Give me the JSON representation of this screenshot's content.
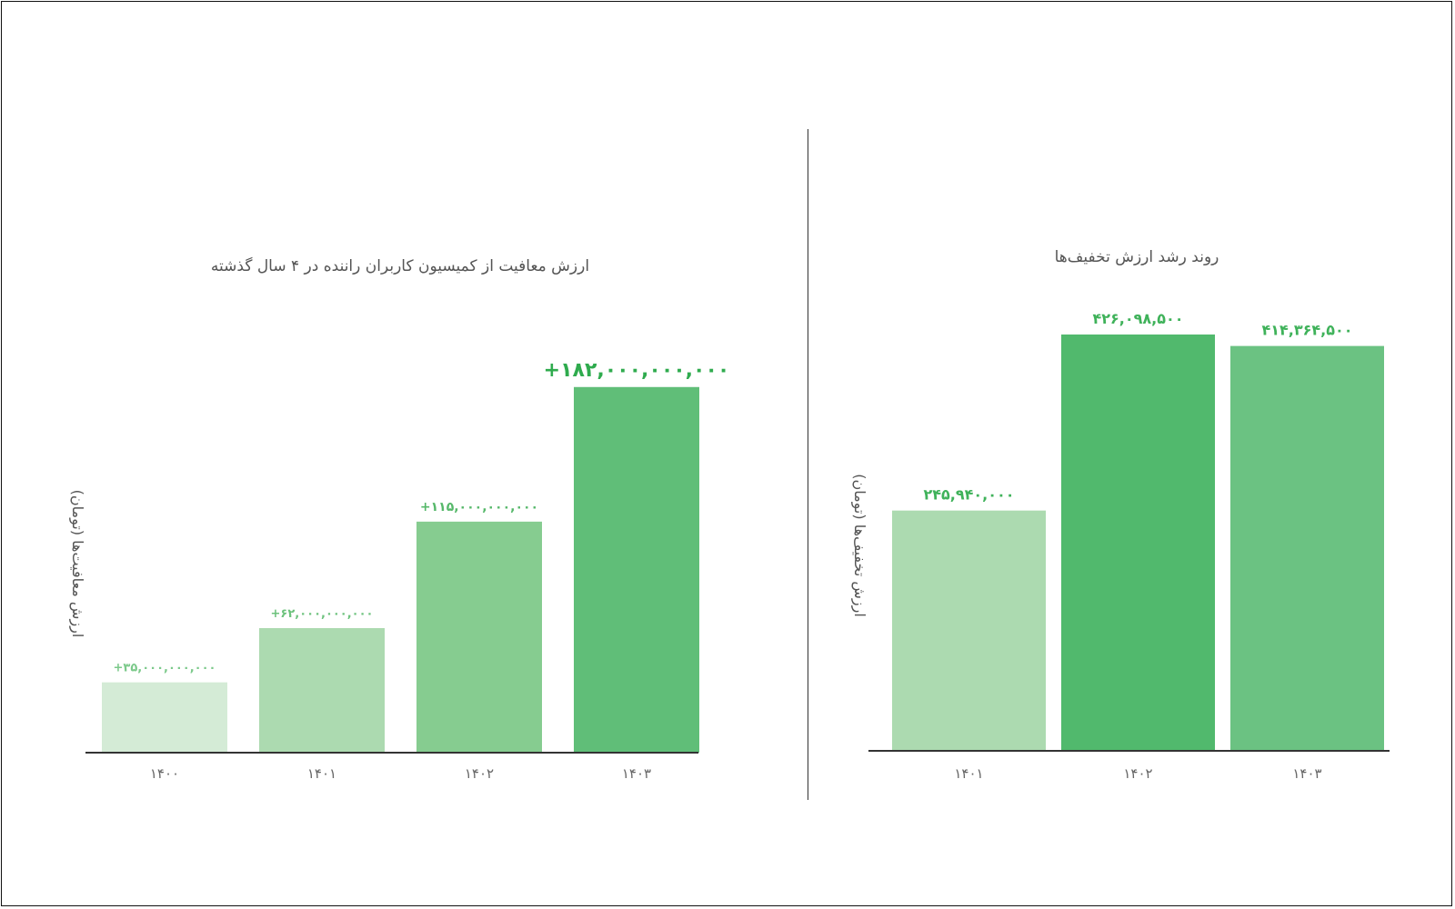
{
  "charts": [
    {
      "title": "ارزش معافیت از کمیسیون کاربران راننده در ۴ سال گذشته",
      "ylabel": "ارزش معافیت‌ها (تومان)",
      "bar_colors": [
        "#d4ebd6",
        "#acdab0",
        "#86cc90",
        "#60be78"
      ],
      "label_colors": [
        "#7bc98a",
        "#6cc27c",
        "#56b86a",
        "#2fab4e"
      ]
    },
    {
      "title": "روند رشد ارزش تخفیف‌ها",
      "ylabel": "ارزش تخفیف‌ها (تومان)",
      "bar_colors": [
        "#acdab0",
        "#51b96d",
        "#6bc282"
      ],
      "label_colors": [
        "#3fb25a",
        "#3fb25a",
        "#3fb25a"
      ]
    }
  ],
  "chart_data": [
    {
      "type": "bar",
      "title": "ارزش معافیت از کمیسیون کاربران راننده در ۴ سال گذشته",
      "xlabel": "",
      "ylabel": "ارزش معافیت‌ها (تومان)",
      "categories": [
        "۱۴۰۰",
        "۱۴۰۱",
        "۱۴۰۲",
        "۱۴۰۳"
      ],
      "values": [
        35000000000,
        62000000000,
        115000000000,
        182000000000
      ],
      "data_labels": [
        "+۳۵,۰۰۰,۰۰۰,۰۰۰",
        "+۶۲,۰۰۰,۰۰۰,۰۰۰",
        "+۱۱۵,۰۰۰,۰۰۰,۰۰۰",
        "+۱۸۲,۰۰۰,۰۰۰,۰۰۰"
      ],
      "ylim": [
        0,
        200000000000
      ],
      "grid": false
    },
    {
      "type": "bar",
      "title": "روند رشد ارزش تخفیف‌ها",
      "xlabel": "",
      "ylabel": "ارزش تخفیف‌ها (تومان)",
      "categories": [
        "۱۴۰۱",
        "۱۴۰۲",
        "۱۴۰۳"
      ],
      "values": [
        245940000,
        426098500,
        414364500
      ],
      "data_labels": [
        "۲۴۵,۹۴۰,۰۰۰",
        "۴۲۶,۰۹۸,۵۰۰",
        "۴۱۴,۳۶۴,۵۰۰"
      ],
      "ylim": [
        0,
        426098500
      ],
      "grid": false
    }
  ]
}
